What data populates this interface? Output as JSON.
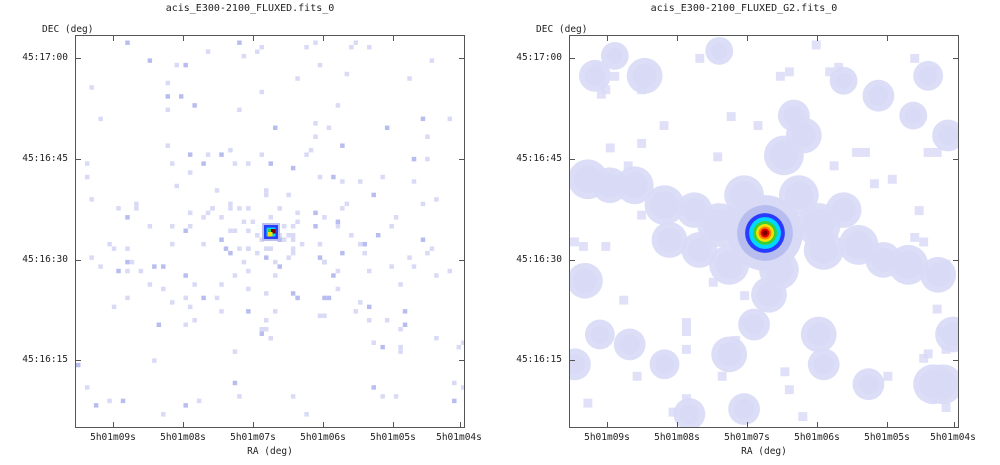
{
  "panels": [
    {
      "title": "acis_E300-2100_FLUXED.fits_0",
      "ylabel": "DEC (deg)",
      "xlabel": "RA (deg)",
      "yticks": [
        "45:17:00",
        "45:16:45",
        "45:16:30",
        "45:16:15"
      ],
      "xticks": [
        "5h01m09s",
        "5h01m08s",
        "5h01m07s",
        "5h01m06s",
        "5h01m05s",
        "5h01m04s"
      ]
    },
    {
      "title": "acis_E300-2100_FLUXED_G2.fits_0",
      "ylabel": "DEC (deg)",
      "xlabel": "RA (deg)",
      "yticks": [
        "45:17:00",
        "45:16:45",
        "45:16:30",
        "45:16:15"
      ],
      "xticks": [
        "5h01m09s",
        "5h01m08s",
        "5h01m07s",
        "5h01m06s",
        "5h01m05s",
        "5h01m04s"
      ]
    }
  ],
  "colors": {
    "faint": "#d8daf6",
    "mid": "#b8bdf0",
    "blue": "#2a3bff",
    "cyan": "#00d8ff",
    "green": "#3ad03a",
    "yellow": "#f5e400",
    "orange": "#ff8000",
    "red": "#e00000",
    "darkred": "#7a0000"
  }
}
